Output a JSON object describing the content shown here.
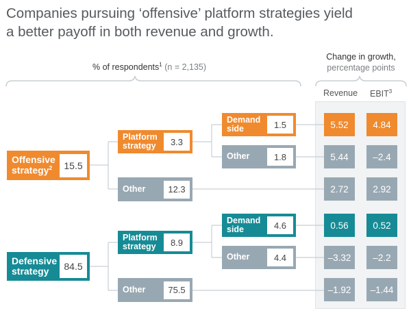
{
  "title": {
    "line1": "Companies pursuing ‘offensive’ platform strategies yield",
    "line2": "a better payoff in both revenue and growth."
  },
  "left_header": {
    "label": "% of respondents",
    "footnote": "1",
    "sample": "(n = 2,135)"
  },
  "right_header": {
    "line1": "Change in growth,",
    "line2": "percentage points",
    "columns": [
      {
        "label": "Revenue",
        "footnote": ""
      },
      {
        "label": "EBIT",
        "footnote": "3"
      }
    ]
  },
  "colors": {
    "offensive": "#f08a2e",
    "defensive": "#168b95",
    "other": "#98a8b3",
    "panel": "#f1f3f4",
    "connector": "#c9cfd3"
  },
  "tree": {
    "offensive": {
      "label_line1": "Offensive",
      "label_line2": "strategy",
      "footnote": "2",
      "value": "15.5",
      "platform": {
        "label_line1": "Platform",
        "label_line2": "strategy",
        "value": "3.3",
        "demand": {
          "label_line1": "Demand",
          "label_line2": "side",
          "value": "1.5"
        },
        "other": {
          "label": "Other",
          "value": "1.8"
        }
      },
      "other": {
        "label": "Other",
        "value": "12.3"
      }
    },
    "defensive": {
      "label_line1": "Defensive",
      "label_line2": "strategy",
      "value": "84.5",
      "platform": {
        "label_line1": "Platform",
        "label_line2": "strategy",
        "value": "8.9",
        "demand": {
          "label_line1": "Demand",
          "label_line2": "side",
          "value": "4.6"
        },
        "other": {
          "label": "Other",
          "value": "4.4"
        }
      },
      "other": {
        "label": "Other",
        "value": "75.5"
      }
    }
  },
  "growth": [
    {
      "row": "Offensive / Platform / Demand side",
      "revenue": "5.52",
      "ebit": "4.84"
    },
    {
      "row": "Offensive / Platform / Other",
      "revenue": "5.44",
      "ebit": "–2.4"
    },
    {
      "row": "Offensive / Other",
      "revenue": "2.72",
      "ebit": "2.92"
    },
    {
      "row": "Defensive / Platform / Demand side",
      "revenue": "0.56",
      "ebit": "0.52"
    },
    {
      "row": "Defensive / Platform / Other",
      "revenue": "–3.32",
      "ebit": "–2.2"
    },
    {
      "row": "Defensive / Other",
      "revenue": "–1.92",
      "ebit": "–1.44"
    }
  ]
}
